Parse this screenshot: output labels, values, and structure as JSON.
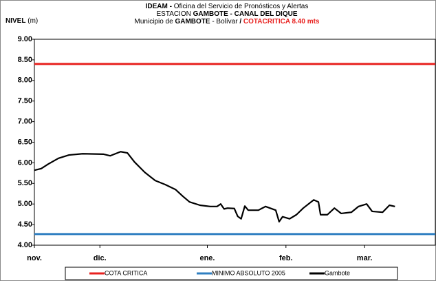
{
  "chart_data": {
    "type": "line",
    "title": [
      [
        "IDEAM - ",
        "Oficina del Servicio de Pronósticos y Alertas"
      ],
      [
        "ESTACION ",
        "GAMBOTE -  CANAL DEL DIQUE"
      ],
      [
        "Municipio de ",
        "GAMBOTE",
        " - Bolívar ",
        " / ",
        "COTACRITICA 8.40  mts"
      ]
    ],
    "y_label": [
      "NIVEL",
      "(m)"
    ],
    "xlim": [
      0,
      153
    ],
    "xticks": [
      {
        "value": 0,
        "label": "nov."
      },
      {
        "value": 25,
        "label": "dic."
      },
      {
        "value": 66,
        "label": "ene."
      },
      {
        "value": 96,
        "label": "feb."
      },
      {
        "value": 126,
        "label": "mar."
      }
    ],
    "ylim": [
      4,
      9
    ],
    "yticks": [
      {
        "value": 4,
        "label": "4.00"
      },
      {
        "value": 4.5,
        "label": "4.50"
      },
      {
        "value": 5,
        "label": "5.00"
      },
      {
        "value": 5.5,
        "label": "5.50"
      },
      {
        "value": 6,
        "label": "6.00"
      },
      {
        "value": 6.5,
        "label": "6.50"
      },
      {
        "value": 7,
        "label": "7.00"
      },
      {
        "value": 7.5,
        "label": "7.50"
      },
      {
        "value": 8,
        "label": "8.00"
      },
      {
        "value": 8.5,
        "label": "8.50"
      },
      {
        "value": 9,
        "label": "9.00"
      }
    ],
    "series": [
      {
        "name": "COTA CRITICA",
        "color": "#e8211f",
        "x": [
          0,
          153
        ],
        "values": [
          8.4,
          8.4
        ]
      },
      {
        "name": "MINIMO ABSOLUTO 2005",
        "color": "#2f7fc1",
        "x": [
          0,
          153
        ],
        "values": [
          4.27,
          4.27
        ]
      },
      {
        "name": "Gambote",
        "color": "#000000",
        "x": [
          0,
          2.6,
          5.3,
          9.2,
          13.2,
          18.4,
          26.3,
          28.9,
          32.9,
          35.5,
          38.2,
          42.1,
          46.1,
          50,
          53.9,
          56.6,
          59.2,
          63.2,
          67.1,
          69.7,
          71.1,
          72.4,
          73.7,
          76.3,
          77.6,
          78.9,
          80.3,
          81.6,
          85.5,
          88.2,
          92.1,
          93.4,
          94.7,
          97.4,
          100,
          102.6,
          106.6,
          108.4,
          109.2,
          111.8,
          114.5,
          117.1,
          121,
          123.7,
          126.8,
          128.9,
          132.9,
          135.5,
          137.6
        ],
        "values": [
          5.82,
          5.86,
          5.97,
          6.11,
          6.19,
          6.22,
          6.21,
          6.17,
          6.27,
          6.24,
          6.02,
          5.77,
          5.57,
          5.47,
          5.35,
          5.19,
          5.05,
          4.97,
          4.94,
          4.94,
          5.0,
          4.88,
          4.9,
          4.89,
          4.7,
          4.64,
          4.95,
          4.85,
          4.85,
          4.94,
          4.85,
          4.57,
          4.69,
          4.64,
          4.74,
          4.9,
          5.1,
          5.05,
          4.74,
          4.74,
          4.9,
          4.77,
          4.8,
          4.94,
          5.0,
          4.82,
          4.8,
          4.97,
          4.94
        ]
      }
    ]
  }
}
